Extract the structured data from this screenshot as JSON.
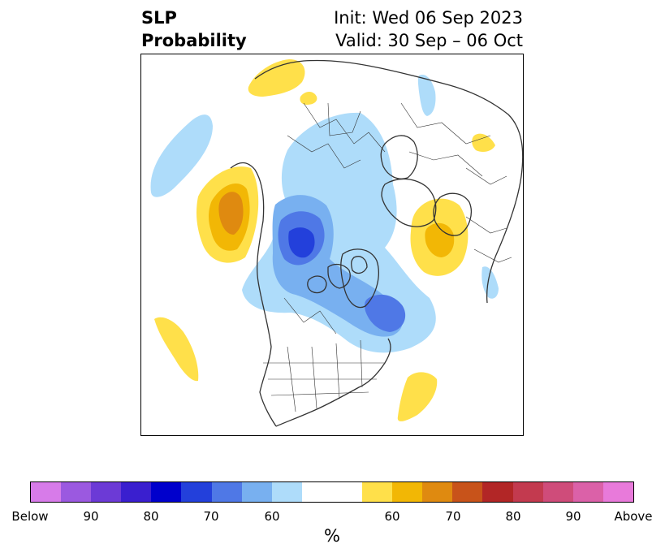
{
  "title": {
    "left_line1": "SLP",
    "left_line2": "Probability",
    "right_line1": "Init: Wed 06 Sep 2023",
    "right_line2": "Valid: 30 Sep – 06 Oct"
  },
  "colorbar": {
    "unit": "%",
    "colors": [
      "#d77be9",
      "#9b59e0",
      "#6c3ad6",
      "#3a1fcf",
      "#0000cc",
      "#2340db",
      "#4f78e6",
      "#78b0f0",
      "#aedcfa",
      "#ffffff",
      "#ffffff",
      "#ffe04a",
      "#f2b705",
      "#df8a10",
      "#c8531a",
      "#b22626",
      "#c33a4f",
      "#cf4c7a",
      "#db61a8",
      "#e87ada"
    ],
    "ticks": [
      "Below",
      "90",
      "80",
      "70",
      "60",
      "60",
      "70",
      "80",
      "90",
      "Above"
    ]
  },
  "map_colors": {
    "blue_60": "#aedcfa",
    "blue_70": "#78b0f0",
    "blue_80": "#4f78e6",
    "blue_90": "#2340db",
    "yellow_60": "#ffe04a",
    "orange_70": "#f2b705",
    "orange_80": "#df8a10",
    "land_border": "#333333"
  }
}
